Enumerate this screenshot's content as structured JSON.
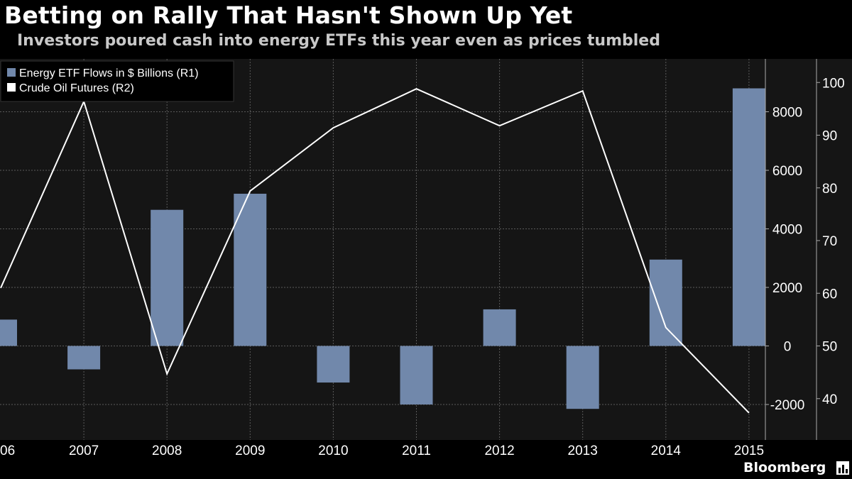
{
  "header": {
    "title": "Betting on Rally That Hasn't Shown Up Yet",
    "subtitle": "Investors poured cash into energy ETFs this year even as prices tumbled"
  },
  "brand": {
    "name": "Bloomberg",
    "icon": "bar-chart-logo-icon"
  },
  "colors": {
    "background": "#000000",
    "plot_background": "#151515",
    "bar": "#7188ab",
    "line": "#ffffff",
    "grid": "#5a5a5a"
  },
  "chart_data": {
    "type": "bar",
    "categories": [
      "06",
      "2007",
      "2008",
      "2009",
      "2010",
      "2011",
      "2012",
      "2013",
      "2014",
      "2015"
    ],
    "series": [
      {
        "name": "Energy ETF Flows in $ Billions (R1)",
        "type": "bar",
        "axis": "R1",
        "values": [
          900,
          -800,
          4650,
          5200,
          -1250,
          -2000,
          1250,
          -2150,
          2950,
          8800
        ]
      },
      {
        "name": "Crude Oil Futures (R2)",
        "type": "line",
        "axis": "R2",
        "values": [
          61,
          96.4,
          44.7,
          79.4,
          91.4,
          98.8,
          91.8,
          98.4,
          53.5,
          37.3
        ]
      }
    ],
    "axes": {
      "R1": {
        "ticks": [
          "8000",
          "6000",
          "4000",
          "2000",
          "0",
          "-2000"
        ],
        "range": [
          -3200,
          9800
        ]
      },
      "R2": {
        "ticks": [
          "100",
          "90",
          "80",
          "70",
          "60",
          "50",
          "40"
        ],
        "range": [
          35,
          105
        ]
      }
    },
    "legend": {
      "placement": "top-left"
    },
    "grid": true
  }
}
